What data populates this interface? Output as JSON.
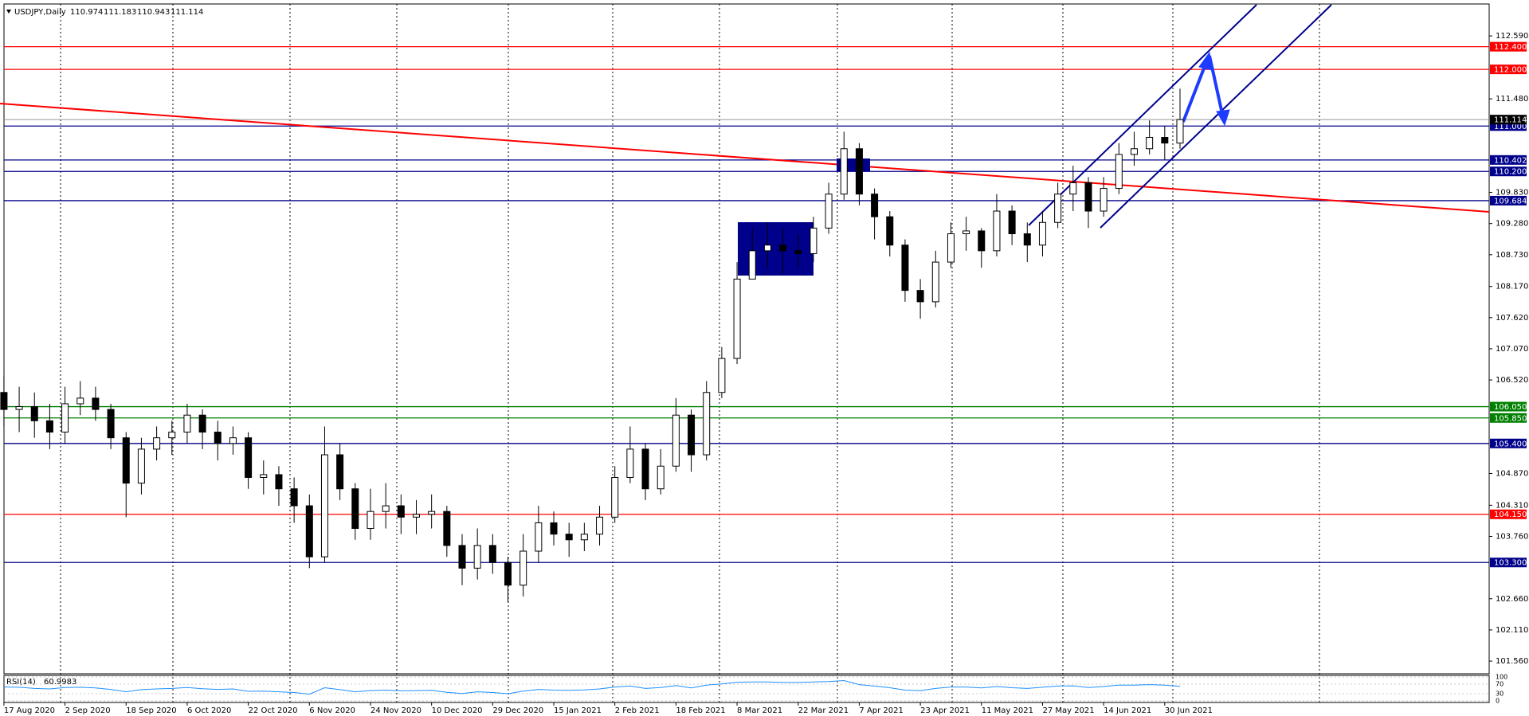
{
  "chart_data": {
    "type": "candlestick",
    "title": "USDJPY,Daily",
    "header_values": [
      110.974,
      111.183,
      110.943,
      111.114
    ],
    "categories": [
      "17 Aug 2020",
      null,
      null,
      null,
      "2 Sep 2020",
      null,
      null,
      null,
      "18 Sep 2020",
      null,
      null,
      null,
      "6 Oct 2020",
      null,
      null,
      null,
      "22 Oct 2020",
      null,
      null,
      null,
      "6 Nov 2020",
      null,
      null,
      null,
      "24 Nov 2020",
      null,
      null,
      null,
      "10 Dec 2020",
      null,
      null,
      null,
      "29 Dec 2020",
      null,
      null,
      null,
      "15 Jan 2021",
      null,
      null,
      null,
      "2 Feb 2021",
      null,
      null,
      null,
      "18 Feb 2021",
      null,
      null,
      null,
      "8 Mar 2021",
      null,
      null,
      null,
      "22 Mar 2021",
      null,
      null,
      null,
      "7 Apr 2021",
      null,
      null,
      null,
      "23 Apr 2021",
      null,
      null,
      null,
      "11 May 2021",
      null,
      null,
      null,
      "27 May 2021",
      null,
      null,
      null,
      "14 Jun 2021",
      null,
      null,
      null,
      "30 Jun 2021",
      null
    ],
    "open": [
      106.3,
      106.0,
      106.05,
      105.8,
      105.6,
      106.1,
      106.2,
      106.0,
      105.5,
      104.7,
      105.3,
      105.5,
      105.6,
      105.9,
      105.6,
      105.4,
      105.5,
      104.8,
      104.85,
      104.6,
      104.3,
      103.4,
      105.2,
      104.6,
      103.9,
      104.2,
      104.3,
      104.1,
      104.15,
      104.2,
      103.6,
      103.2,
      103.6,
      103.3,
      102.9,
      103.5,
      104.0,
      103.8,
      103.7,
      103.8,
      104.1,
      104.8,
      105.3,
      104.6,
      105.0,
      105.9,
      105.2,
      106.3,
      106.9,
      108.3,
      108.8,
      108.9,
      108.8,
      108.75,
      109.2,
      109.8,
      110.6,
      109.8,
      109.4,
      108.9,
      108.1,
      107.9,
      108.6,
      109.1,
      109.15,
      108.8,
      109.5,
      109.1,
      108.9,
      109.3,
      109.8,
      110.0,
      109.5,
      109.9,
      110.5,
      110.6,
      110.8,
      110.7
    ],
    "high": [
      106.6,
      106.4,
      106.3,
      106.1,
      106.4,
      106.5,
      106.4,
      106.1,
      105.6,
      105.5,
      105.7,
      105.8,
      106.1,
      106.0,
      105.8,
      105.7,
      105.6,
      105.1,
      105.0,
      104.8,
      104.5,
      105.7,
      105.4,
      104.7,
      104.6,
      104.7,
      104.5,
      104.4,
      104.5,
      104.3,
      103.8,
      103.9,
      103.8,
      103.4,
      103.8,
      104.3,
      104.2,
      104.0,
      104.0,
      104.3,
      105.0,
      105.7,
      105.4,
      105.3,
      106.2,
      106.0,
      106.5,
      107.1,
      108.6,
      109.2,
      109.3,
      109.2,
      109.1,
      109.4,
      110.0,
      110.9,
      110.7,
      109.9,
      109.5,
      109.0,
      108.3,
      108.8,
      109.3,
      109.4,
      109.2,
      109.8,
      109.6,
      109.3,
      109.5,
      110.0,
      110.3,
      110.1,
      110.1,
      110.7,
      110.9,
      111.1,
      111.0,
      111.66
    ],
    "low": [
      105.7,
      105.6,
      105.5,
      105.3,
      105.4,
      105.9,
      105.8,
      105.3,
      104.1,
      104.5,
      105.1,
      105.2,
      105.4,
      105.3,
      105.1,
      105.2,
      104.6,
      104.5,
      104.3,
      104.0,
      103.2,
      103.3,
      104.4,
      103.7,
      103.7,
      103.9,
      103.8,
      103.8,
      103.9,
      103.4,
      102.9,
      103.0,
      103.1,
      102.6,
      102.7,
      103.3,
      103.6,
      103.4,
      103.5,
      103.6,
      104.0,
      104.7,
      104.4,
      104.5,
      104.9,
      104.9,
      105.1,
      106.2,
      106.8,
      108.3,
      108.5,
      108.4,
      108.5,
      108.6,
      109.1,
      109.7,
      109.6,
      109.0,
      108.7,
      107.9,
      107.6,
      107.8,
      108.5,
      108.8,
      108.5,
      108.7,
      108.9,
      108.6,
      108.7,
      109.2,
      109.5,
      109.2,
      109.4,
      109.8,
      110.3,
      110.5,
      110.4,
      110.6
    ],
    "close": [
      106.0,
      106.05,
      105.8,
      105.6,
      106.1,
      106.2,
      106.0,
      105.5,
      104.7,
      105.3,
      105.5,
      105.6,
      105.9,
      105.6,
      105.4,
      105.5,
      104.8,
      104.85,
      104.6,
      104.3,
      103.4,
      105.2,
      104.6,
      103.9,
      104.2,
      104.3,
      104.1,
      104.15,
      104.2,
      103.6,
      103.2,
      103.6,
      103.3,
      102.9,
      103.5,
      104.0,
      103.8,
      103.7,
      103.8,
      104.1,
      104.8,
      105.3,
      104.6,
      105.0,
      105.9,
      105.2,
      106.3,
      106.9,
      108.3,
      108.8,
      108.9,
      108.8,
      108.75,
      109.2,
      109.8,
      110.6,
      109.8,
      109.4,
      108.9,
      108.1,
      107.9,
      108.6,
      109.1,
      109.15,
      108.8,
      109.5,
      109.1,
      108.9,
      109.3,
      109.8,
      110.0,
      109.5,
      109.9,
      110.5,
      110.6,
      110.8,
      110.7,
      111.114
    ],
    "ylim": [
      101.35,
      113.14
    ],
    "yticks": [
      {
        "value": 112.59,
        "label": "112.590"
      },
      {
        "value": 111.48,
        "label": "111.480"
      },
      {
        "value": 109.83,
        "label": "109.830"
      },
      {
        "value": 109.28,
        "label": "109.280"
      },
      {
        "value": 108.73,
        "label": "108.730"
      },
      {
        "value": 108.17,
        "label": "108.170"
      },
      {
        "value": 107.62,
        "label": "107.620"
      },
      {
        "value": 107.07,
        "label": "107.070"
      },
      {
        "value": 106.52,
        "label": "106.520"
      },
      {
        "value": 104.87,
        "label": "104.870"
      },
      {
        "value": 104.31,
        "label": "104.310"
      },
      {
        "value": 103.76,
        "label": "103.760"
      },
      {
        "value": 102.66,
        "label": "102.660"
      },
      {
        "value": 102.11,
        "label": "102.110"
      },
      {
        "value": 101.56,
        "label": "101.560"
      }
    ],
    "levels": [
      {
        "value": 112.4,
        "label": "112.400",
        "color": "#ff0000"
      },
      {
        "value": 112.0,
        "label": "112.000",
        "color": "#ff0000"
      },
      {
        "value": 111.0,
        "label": "111.000",
        "color": "#00008b"
      },
      {
        "value": 110.402,
        "label": "110.402",
        "color": "#00008b"
      },
      {
        "value": 110.2,
        "label": "110.200",
        "color": "#00008b"
      },
      {
        "value": 109.684,
        "label": "109.684",
        "color": "#00008b"
      },
      {
        "value": 106.05,
        "label": "106.050",
        "color": "#008000"
      },
      {
        "value": 105.85,
        "label": "105.850",
        "color": "#008000"
      },
      {
        "value": 105.4,
        "label": "105.400",
        "color": "#00008b"
      },
      {
        "value": 104.15,
        "label": "104.150",
        "color": "#ff0000"
      },
      {
        "value": 103.3,
        "label": "103.300",
        "color": "#00008b"
      }
    ],
    "rsi": {
      "label": "RSI(14)",
      "value": 60.9983,
      "color": "#1e90ff",
      "ylim": [
        0,
        100
      ],
      "yticks": [
        0,
        30,
        70,
        100
      ],
      "values": [
        58,
        57,
        52,
        50,
        56,
        57,
        54,
        48,
        38,
        47,
        50,
        52,
        56,
        51,
        48,
        50,
        40,
        41,
        38,
        35,
        28,
        55,
        47,
        38,
        43,
        45,
        42,
        43,
        44,
        36,
        31,
        38,
        35,
        30,
        41,
        48,
        45,
        44,
        46,
        50,
        58,
        62,
        52,
        56,
        64,
        54,
        66,
        71,
        78,
        79,
        79,
        77,
        77,
        79,
        81,
        85,
        68,
        62,
        55,
        45,
        43,
        52,
        58,
        58,
        54,
        60,
        55,
        52,
        57,
        62,
        63,
        56,
        60,
        66,
        66,
        68,
        66,
        61
      ]
    }
  }
}
